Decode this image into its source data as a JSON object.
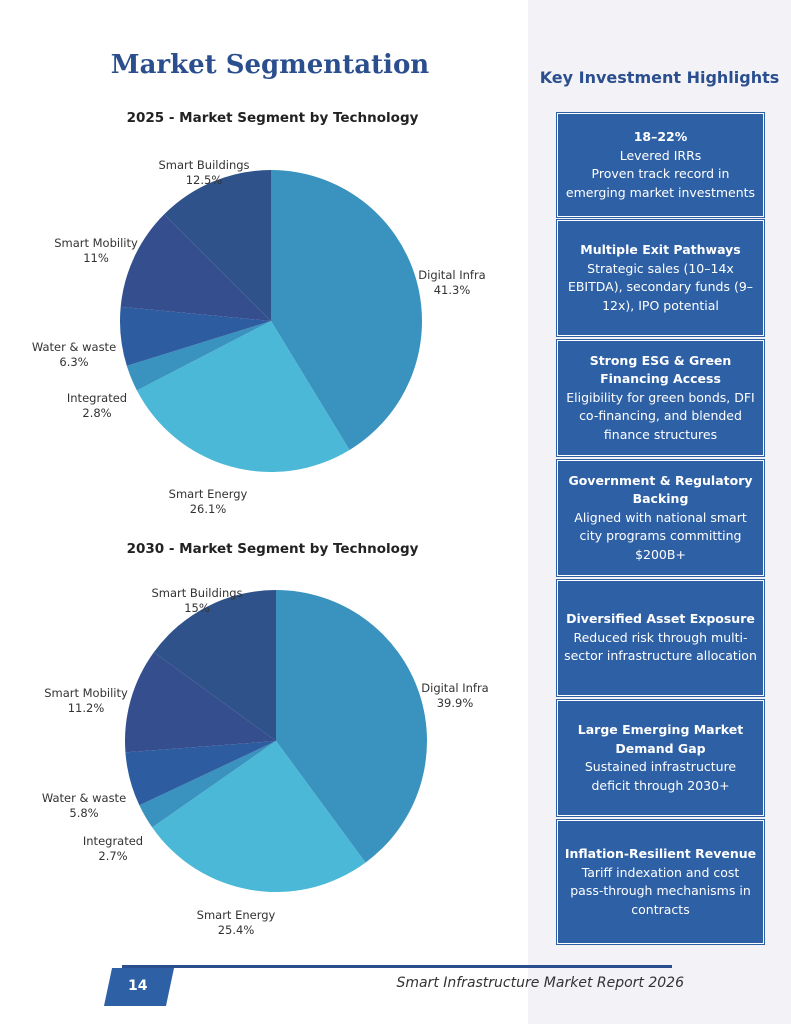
{
  "title": "Market Segmentation",
  "chart_data": [
    {
      "type": "pie",
      "title": "2025 - Market Segment by Technology",
      "categories": [
        "Digital Infra",
        "Smart Energy",
        "Integrated",
        "Water & waste",
        "Smart Mobility",
        "Smart Buildings"
      ],
      "values": [
        41.3,
        26.1,
        2.8,
        6.3,
        11,
        12.5
      ],
      "labels": [
        "41.3%",
        "26.1%",
        "2.8%",
        "6.3%",
        "11%",
        "12.5%"
      ],
      "colors": [
        "#3a92be",
        "#4ab8d6",
        "#3a92be",
        "#2e5ca0",
        "#354e8e",
        "#2e5289"
      ]
    },
    {
      "type": "pie",
      "title": "2030 - Market Segment by Technology",
      "categories": [
        "Digital Infra",
        "Smart Energy",
        "Integrated",
        "Water & waste",
        "Smart Mobility",
        "Smart Buildings"
      ],
      "values": [
        39.9,
        25.4,
        2.7,
        5.8,
        11.2,
        15
      ],
      "labels": [
        "39.9%",
        "25.4%",
        "2.7%",
        "5.8%",
        "11.2%",
        "15%"
      ],
      "colors": [
        "#3a92be",
        "#4ab8d6",
        "#3a92be",
        "#2e5ca0",
        "#354e8e",
        "#2e5289"
      ]
    }
  ],
  "panel": {
    "title": "Key Investment Highlights",
    "boxes": [
      {
        "head": "18–22%",
        "body": "Levered IRRs\nProven track record in emerging market investments"
      },
      {
        "head": "Multiple Exit Pathways",
        "body": "Strategic sales (10–14x EBITDA), secondary funds (9–12x), IPO potential"
      },
      {
        "head": "Strong ESG & Green Financing Access",
        "body": "Eligibility for green bonds, DFI co-financing, and blended finance structures"
      },
      {
        "head": "Government & Regulatory Backing",
        "body": "Aligned with national smart city programs committing $200B+"
      },
      {
        "head": "Diversified Asset Exposure",
        "body": "Reduced risk through multi-sector infrastructure allocation"
      },
      {
        "head": "Large Emerging Market Demand Gap",
        "body": "Sustained infrastructure deficit through 2030+"
      },
      {
        "head": "Inflation-Resilient Revenue",
        "body": "Tariff indexation and cost pass-through mechanisms in contracts"
      }
    ]
  },
  "footer": {
    "page": "14",
    "report": "Smart Infrastructure Market Report 2026"
  }
}
